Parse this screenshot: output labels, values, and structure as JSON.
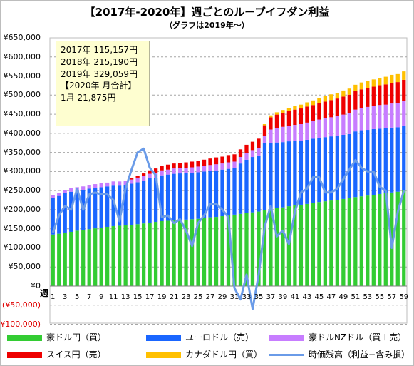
{
  "summary": [
    "2017年 115,157円",
    "2018年 215,190円",
    "2019年 329,059円",
    "【2020年 月合計】",
    "1月 21,875円"
  ],
  "chart_data": {
    "type": "bar",
    "stacked": true,
    "title": "【2017年-2020年】週ごとのループイフダン利益",
    "subtitle": "（グラフは2019年～）",
    "xlabel": "週",
    "ylim": [
      -100000,
      650000
    ],
    "y_tick_labels": [
      "¥650,000",
      "¥600,000",
      "¥550,000",
      "¥500,000",
      "¥450,000",
      "¥400,000",
      "¥350,000",
      "¥300,000",
      "¥250,000",
      "¥200,000",
      "¥150,000",
      "¥100,000",
      "¥50,000",
      "¥0",
      "(¥50,000)",
      "(¥100,000)"
    ],
    "x_tick_labels": [
      "1",
      "3",
      "5",
      "7",
      "9",
      "11",
      "13",
      "15",
      "17",
      "19",
      "21",
      "23",
      "25",
      "27",
      "29",
      "31",
      "33",
      "35",
      "37",
      "39",
      "41",
      "43",
      "45",
      "47",
      "49",
      "51",
      "53",
      "55",
      "57",
      "59"
    ],
    "grid": true,
    "legend_position": "bottom",
    "colors": {
      "aud_jpy": "#33cc33",
      "eur_usd": "#1a66ff",
      "aud_nzd": "#c77dff",
      "chf_jpy": "#ee0000",
      "cad_jpy": "#ffc000",
      "line": "#6a9be8"
    },
    "weeks": [
      1,
      2,
      3,
      4,
      5,
      6,
      7,
      8,
      9,
      10,
      11,
      12,
      13,
      14,
      15,
      16,
      17,
      18,
      19,
      20,
      21,
      22,
      23,
      24,
      25,
      26,
      27,
      28,
      29,
      30,
      31,
      32,
      33,
      34,
      35,
      36,
      37,
      38,
      39,
      40,
      41,
      42,
      43,
      44,
      45,
      46,
      47,
      48,
      49,
      50,
      51,
      52,
      53,
      54,
      55,
      56,
      57,
      58,
      59
    ],
    "series": [
      {
        "name": "豪ドル円（買）",
        "color": "#33cc33",
        "values": [
          135000,
          137000,
          140000,
          142000,
          145000,
          147000,
          149000,
          151000,
          153000,
          155000,
          157000,
          158000,
          159000,
          160000,
          162000,
          164000,
          166000,
          168000,
          170000,
          171000,
          172000,
          173000,
          174000,
          175000,
          176000,
          178000,
          180000,
          181000,
          183000,
          185000,
          187000,
          189000,
          191000,
          193000,
          195000,
          198000,
          201000,
          204000,
          206000,
          209000,
          211000,
          213000,
          215000,
          218000,
          220000,
          222000,
          224000,
          226000,
          228000,
          230000,
          233000,
          235000,
          237000,
          239000,
          241000,
          243000,
          245000,
          247000,
          250000
        ]
      },
      {
        "name": "ユーロドル（売）",
        "color": "#1a66ff",
        "values": [
          95000,
          99000,
          103000,
          105000,
          105000,
          105000,
          106000,
          106000,
          106000,
          106000,
          106000,
          105000,
          105000,
          108000,
          110000,
          112000,
          116000,
          116000,
          120000,
          121000,
          122000,
          122000,
          122000,
          122000,
          122000,
          122000,
          121000,
          122000,
          122000,
          122000,
          122000,
          132000,
          140000,
          145000,
          147000,
          176000,
          174000,
          172000,
          171000,
          170000,
          169000,
          168000,
          168000,
          168000,
          168000,
          168000,
          168000,
          168000,
          168000,
          168000,
          172000,
          173000,
          172000,
          172000,
          171000,
          170000,
          170000,
          169000,
          170000
        ]
      },
      {
        "name": "豪ドルNZドル（買＋売）",
        "color": "#c77dff",
        "values": [
          8000,
          8000,
          8000,
          9000,
          9000,
          9000,
          10000,
          10000,
          10000,
          10000,
          11000,
          11000,
          11000,
          11000,
          12000,
          12000,
          12000,
          13000,
          13000,
          13000,
          14000,
          14000,
          14000,
          14000,
          15000,
          15000,
          16000,
          16000,
          16000,
          17000,
          17000,
          17000,
          18000,
          18000,
          19000,
          20000,
          35000,
          38000,
          40000,
          40000,
          42000,
          43000,
          45000,
          46000,
          48000,
          49000,
          50000,
          51000,
          53000,
          55000,
          57000,
          58000,
          60000,
          60000,
          62000,
          62000,
          63000,
          63000,
          64000
        ]
      },
      {
        "name": "スイス円（売）",
        "color": "#ee0000",
        "values": [
          0,
          0,
          0,
          0,
          0,
          0,
          0,
          0,
          0,
          0,
          0,
          0,
          0,
          3000,
          5000,
          7000,
          9000,
          11000,
          12000,
          13000,
          13000,
          14000,
          14000,
          15000,
          15000,
          16000,
          17000,
          18000,
          18000,
          19000,
          19000,
          20000,
          21000,
          22000,
          25000,
          27000,
          32000,
          35000,
          37000,
          39000,
          40000,
          41000,
          42000,
          42000,
          43000,
          44000,
          45000,
          46000,
          47000,
          48000,
          48000,
          49000,
          50000,
          51000,
          52000,
          53000,
          54000,
          55000,
          56000
        ]
      },
      {
        "name": "カナダドル円（買）",
        "color": "#ffc000",
        "values": [
          0,
          0,
          0,
          0,
          0,
          0,
          0,
          0,
          0,
          0,
          0,
          0,
          0,
          0,
          0,
          0,
          0,
          0,
          0,
          0,
          0,
          0,
          0,
          0,
          0,
          0,
          0,
          0,
          0,
          0,
          0,
          0,
          0,
          0,
          0,
          3000,
          5000,
          6000,
          7000,
          8000,
          9000,
          10000,
          11000,
          12000,
          13000,
          14000,
          15000,
          15000,
          16000,
          16000,
          17000,
          18000,
          18000,
          19000,
          19000,
          20000,
          21000,
          21000,
          22000
        ]
      }
    ],
    "line": {
      "name": "時価残高（利益−含み損）",
      "color": "#6a9be8",
      "values": [
        140000,
        185000,
        210000,
        200000,
        255000,
        200000,
        240000,
        245000,
        240000,
        240000,
        225000,
        170000,
        255000,
        305000,
        350000,
        360000,
        310000,
        290000,
        180000,
        185000,
        165000,
        175000,
        145000,
        105000,
        165000,
        185000,
        215000,
        215000,
        200000,
        180000,
        -5000,
        -35000,
        30000,
        -60000,
        30000,
        155000,
        210000,
        130000,
        145000,
        110000,
        195000,
        245000,
        255000,
        285000,
        285000,
        245000,
        245000,
        255000,
        280000,
        305000,
        330000,
        310000,
        300000,
        300000,
        260000,
        250000,
        100000,
        195000,
        250000
      ]
    }
  }
}
